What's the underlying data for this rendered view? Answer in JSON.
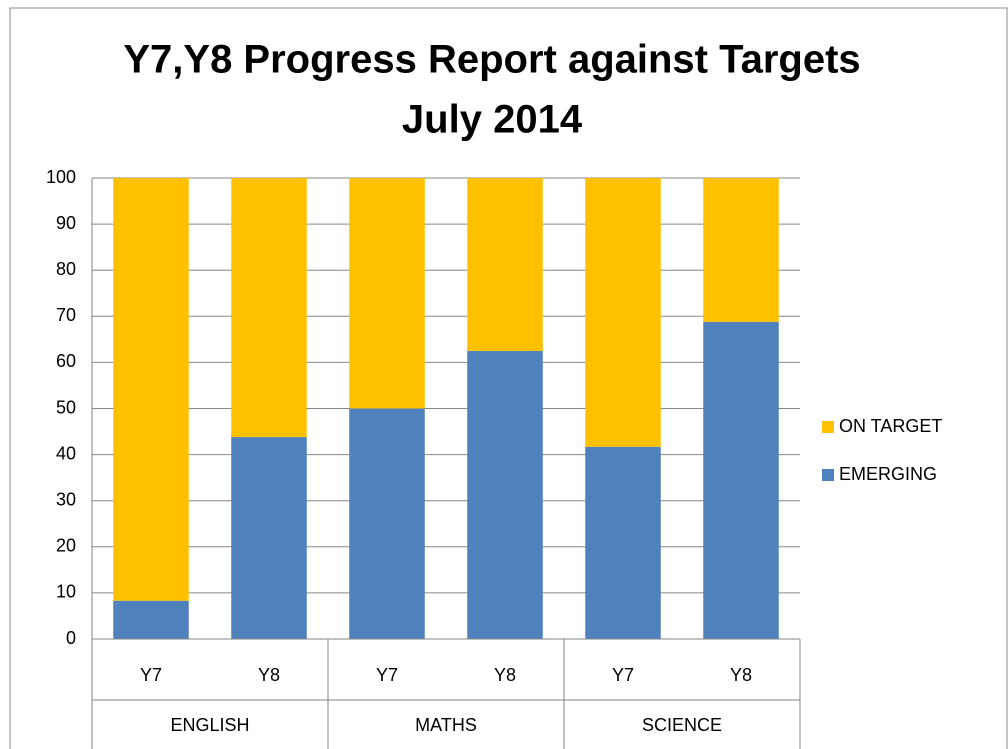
{
  "chart_data": {
    "type": "stacked_bar",
    "title": [
      "Y7,Y8 Progress Report against Targets",
      "July  2014"
    ],
    "categories": [
      "Y7",
      "Y8",
      "Y7",
      "Y8",
      "Y7",
      "Y8"
    ],
    "groups": [
      "ENGLISH",
      "MATHS",
      "SCIENCE"
    ],
    "series": [
      {
        "name": "EMERGING",
        "color": "#4f81bd",
        "values": [
          8.3,
          43.8,
          50,
          62.5,
          41.7,
          68.8
        ]
      },
      {
        "name": "ON TARGET",
        "color": "#ffc000",
        "values": [
          91.7,
          56.2,
          50,
          37.5,
          58.3,
          31.2
        ]
      }
    ],
    "ylim": [
      0,
      100
    ],
    "yticks": [
      0,
      10,
      20,
      30,
      40,
      50,
      60,
      70,
      80,
      90,
      100
    ],
    "grid": true,
    "legend": "right"
  }
}
